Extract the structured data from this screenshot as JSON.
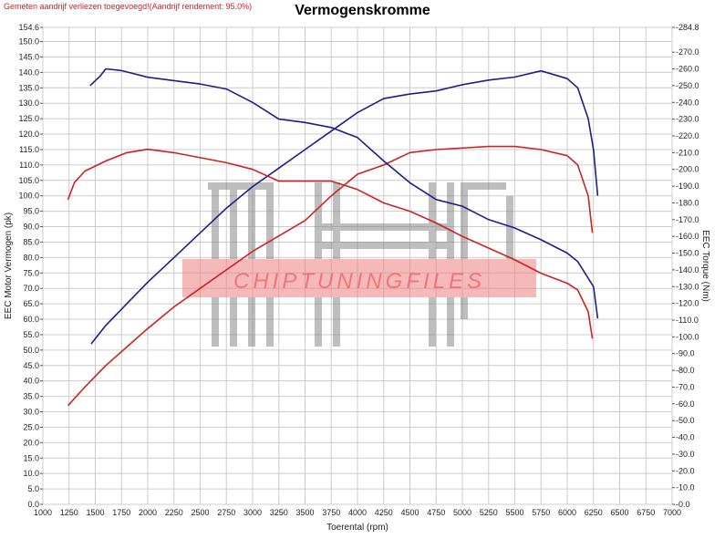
{
  "note": "Gemeten aandrijf verliezen toegevoegd!(Aandrijf rendement: 95.0%)",
  "watermark": "CHIPTUNINGFILES",
  "colors": {
    "dark_blue": "#1a1f8a",
    "red": "#cc2222",
    "grid": "#cccccc",
    "note": "#d02020",
    "watermark_band": "#f08080"
  },
  "chart_data": {
    "type": "line",
    "title": "Vermogenskromme",
    "xlabel": "Toerental (rpm)",
    "ylabel": "EEC Motor Vermogen (pk)",
    "y2label": "EEC Torque (Nm)",
    "xlim": [
      1000,
      7000
    ],
    "ylim": [
      0,
      154.6
    ],
    "y2lim": [
      0,
      284.8
    ],
    "x_ticks": [
      "1000",
      "1250",
      "1500",
      "1750",
      "2000",
      "2250",
      "2500",
      "2750",
      "3000",
      "3250",
      "3500",
      "3750",
      "4000",
      "4250",
      "4500",
      "4750",
      "5000",
      "5250",
      "5500",
      "5750",
      "6000",
      "6250",
      "6500",
      "6750",
      "7000"
    ],
    "y_ticks": [
      "0.0",
      "5.0",
      "10.0",
      "15.0",
      "20.0",
      "25.0",
      "30.0",
      "35.0",
      "40.0",
      "45.0",
      "50.0",
      "55.0",
      "60.0",
      "65.0",
      "70.0",
      "75.0",
      "80.0",
      "85.0",
      "90.0",
      "95.0",
      "100.0",
      "105.0",
      "110.0",
      "115.0",
      "120.0",
      "125.0",
      "130.0",
      "135.0",
      "140.0",
      "145.0",
      "150.0",
      "154.6"
    ],
    "y2_ticks": [
      "0.0",
      "10.0",
      "20.0",
      "30.0",
      "40.0",
      "50.0",
      "60.0",
      "70.0",
      "80.0",
      "90.0",
      "100.0",
      "110.0",
      "120.0",
      "130.0",
      "140.0",
      "150.0",
      "160.0",
      "170.0",
      "180.0",
      "190.0",
      "200.0",
      "210.0",
      "220.0",
      "230.0",
      "240.0",
      "250.0",
      "260.0",
      "270.0",
      "284.8"
    ],
    "grid": true,
    "series": [
      {
        "axis": "left",
        "color": "#1a1f8a",
        "x": [
          1460,
          1600,
          1800,
          2000,
          2250,
          2500,
          2750,
          3000,
          3250,
          3500,
          3750,
          4000,
          4250,
          4500,
          4750,
          5000,
          5250,
          5500,
          5750,
          6000,
          6100,
          6200,
          6250,
          6290
        ],
        "y": [
          52,
          58,
          65,
          72,
          80,
          88,
          96,
          103,
          109,
          115,
          121,
          127,
          131.5,
          133,
          134,
          136,
          137.5,
          138.5,
          140.5,
          138,
          135,
          125,
          115,
          100
        ]
      },
      {
        "axis": "left",
        "color": "#cc2222",
        "x": [
          1240,
          1400,
          1600,
          1800,
          2000,
          2250,
          2500,
          2750,
          3000,
          3250,
          3500,
          3750,
          4000,
          4250,
          4500,
          4750,
          5000,
          5250,
          5500,
          5750,
          6000,
          6100,
          6200,
          6240
        ],
        "y": [
          32,
          38,
          45,
          51,
          57,
          64,
          70,
          76,
          82,
          87,
          92,
          100,
          107,
          110,
          114,
          115,
          115.5,
          116,
          116,
          115,
          113,
          110,
          100,
          88
        ]
      },
      {
        "axis": "right",
        "color": "#1a1f8a",
        "x": [
          1450,
          1550,
          1600,
          1750,
          2000,
          2250,
          2500,
          2750,
          3000,
          3250,
          3500,
          3750,
          4000,
          4250,
          4500,
          4750,
          5000,
          5250,
          5500,
          5750,
          6000,
          6100,
          6200,
          6250,
          6290
        ],
        "y": [
          250,
          256,
          260,
          259,
          255,
          253,
          251,
          248,
          240,
          230,
          228,
          225,
          219,
          205,
          192,
          182,
          178,
          170,
          165,
          158,
          150,
          145,
          135,
          130,
          111
        ]
      },
      {
        "axis": "right",
        "color": "#cc2222",
        "x": [
          1240,
          1300,
          1400,
          1600,
          1800,
          2000,
          2250,
          2500,
          2750,
          3000,
          3250,
          3500,
          3750,
          4000,
          4250,
          4500,
          4750,
          5000,
          5250,
          5500,
          5750,
          6000,
          6100,
          6200,
          6240
        ],
        "y": [
          182,
          192,
          199,
          205,
          210,
          212,
          210,
          207,
          204,
          200,
          193,
          193,
          193,
          188,
          180,
          175,
          168,
          160,
          153,
          146,
          138,
          132,
          128,
          115,
          99
        ]
      }
    ]
  }
}
